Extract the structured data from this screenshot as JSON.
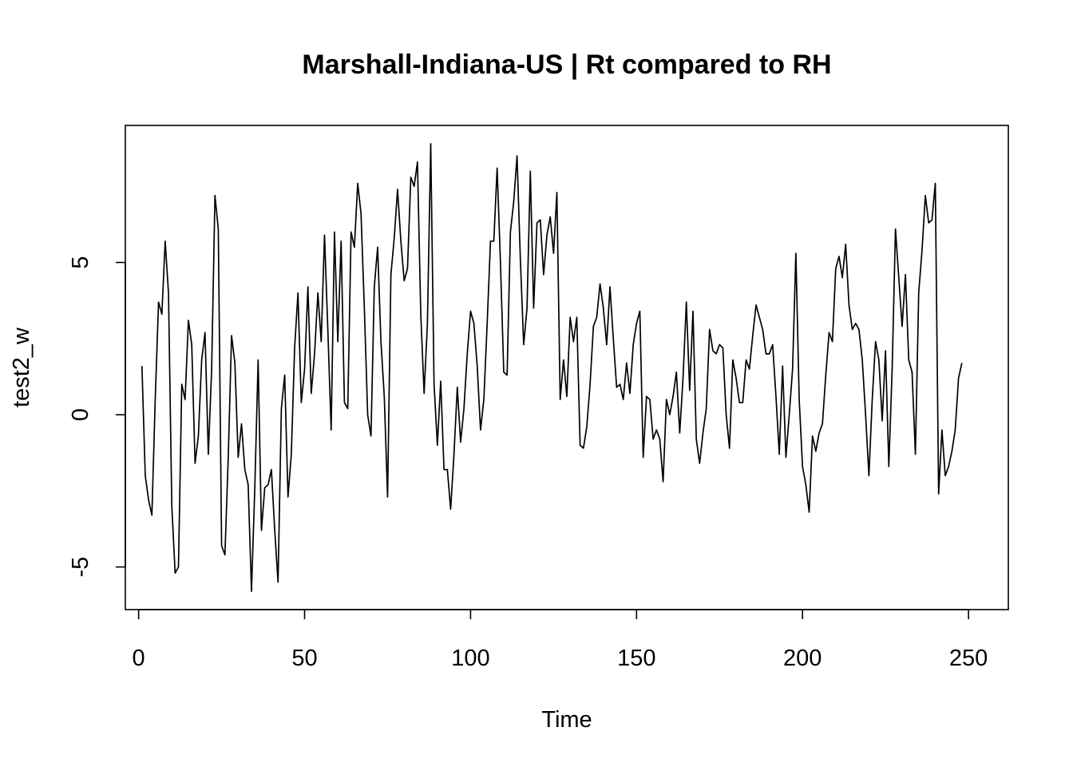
{
  "chart_data": {
    "type": "line",
    "title": "Marshall-Indiana-US | Rt compared to RH",
    "xlabel": "Time",
    "ylabel": "test2_w",
    "xlim": [
      -4,
      262
    ],
    "ylim": [
      -6.4,
      9.5
    ],
    "x_ticks": [
      0,
      50,
      100,
      150,
      200,
      250
    ],
    "y_ticks": [
      -5,
      0,
      5
    ],
    "grid": false,
    "x_start": 1,
    "series": [
      {
        "color": "#000000",
        "values": [
          1.6,
          -2.0,
          -2.8,
          -3.3,
          0.5,
          3.7,
          3.3,
          5.7,
          4.0,
          -3.0,
          -5.2,
          -5.0,
          1.0,
          0.5,
          3.1,
          2.3,
          -1.6,
          -0.7,
          1.8,
          2.7,
          -1.3,
          1.5,
          7.2,
          6.1,
          -4.3,
          -4.6,
          -1.4,
          2.6,
          1.7,
          -1.4,
          -0.3,
          -1.8,
          -2.3,
          -5.8,
          -2.4,
          1.8,
          -3.8,
          -2.4,
          -2.3,
          -1.8,
          -3.8,
          -5.5,
          0.2,
          1.3,
          -2.7,
          -1.3,
          2.2,
          4.0,
          0.4,
          1.5,
          4.2,
          0.7,
          2.0,
          4.0,
          2.4,
          5.9,
          2.8,
          -0.5,
          6.0,
          2.4,
          5.7,
          0.4,
          0.2,
          6.0,
          5.5,
          7.6,
          6.6,
          3.5,
          0.0,
          -0.7,
          4.2,
          5.5,
          2.4,
          0.6,
          -2.7,
          4.6,
          5.8,
          7.4,
          5.7,
          4.4,
          4.8,
          7.8,
          7.5,
          8.3,
          3.3,
          0.7,
          3.0,
          8.9,
          1.0,
          -1.0,
          1.1,
          -1.8,
          -1.8,
          -3.1,
          -1.3,
          0.9,
          -0.9,
          0.2,
          2.0,
          3.4,
          3.0,
          1.6,
          -0.5,
          0.5,
          3.0,
          5.7,
          5.7,
          8.1,
          5.0,
          1.4,
          1.3,
          6.0,
          7.0,
          8.5,
          5.1,
          2.3,
          3.5,
          8.0,
          3.5,
          6.3,
          6.4,
          4.6,
          5.9,
          6.5,
          5.3,
          7.3,
          0.5,
          1.8,
          0.6,
          3.2,
          2.4,
          3.2,
          -1.0,
          -1.1,
          -0.4,
          1.0,
          2.9,
          3.2,
          4.3,
          3.5,
          2.3,
          4.2,
          2.5,
          0.9,
          1.0,
          0.5,
          1.7,
          0.7,
          2.3,
          3.0,
          3.4,
          -1.4,
          0.6,
          0.5,
          -0.8,
          -0.5,
          -0.8,
          -2.2,
          0.5,
          0.0,
          0.6,
          1.4,
          -0.6,
          1.2,
          3.7,
          0.8,
          3.4,
          -0.8,
          -1.6,
          -0.6,
          0.2,
          2.8,
          2.1,
          2.0,
          2.3,
          2.2,
          0.0,
          -1.1,
          1.8,
          1.2,
          0.4,
          0.4,
          1.8,
          1.5,
          2.6,
          3.6,
          3.2,
          2.8,
          2.0,
          2.0,
          2.3,
          0.6,
          -1.3,
          1.6,
          -1.4,
          0.0,
          1.5,
          5.3,
          0.5,
          -1.7,
          -2.3,
          -3.2,
          -0.7,
          -1.2,
          -0.6,
          -0.3,
          1.3,
          2.7,
          2.4,
          4.8,
          5.2,
          4.5,
          5.6,
          3.6,
          2.8,
          3.0,
          2.8,
          1.8,
          0.0,
          -2.0,
          0.5,
          2.4,
          1.8,
          -0.2,
          2.1,
          -1.7,
          1.5,
          6.1,
          4.5,
          2.9,
          4.6,
          1.8,
          1.4,
          -1.3,
          4.0,
          5.4,
          7.2,
          6.3,
          6.4,
          7.6,
          -2.6,
          -0.5,
          -2.0,
          -1.7,
          -1.2,
          -0.5,
          1.2,
          1.7
        ]
      }
    ]
  }
}
